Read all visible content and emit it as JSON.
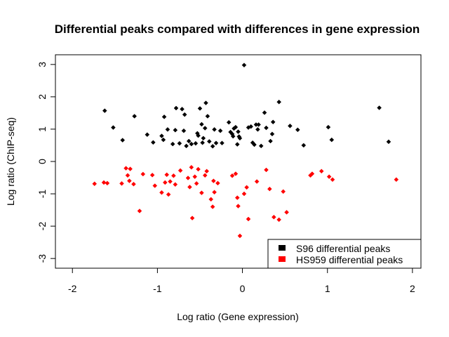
{
  "chart_data": {
    "type": "scatter",
    "title": "Differential peaks compared with differences in gene expression",
    "xlabel": "Log ratio (Gene expression)",
    "ylabel": "Log ratio (ChIP-seq)",
    "xlim": [
      -2.2,
      2.1
    ],
    "ylim": [
      -3.3,
      3.3
    ],
    "x_ticks": [
      "-2",
      "-1",
      "0",
      "1",
      "2"
    ],
    "x_tick_values": [
      -2,
      -1,
      0,
      1,
      2
    ],
    "y_ticks": [
      "-3",
      "-2",
      "-1",
      "0",
      "1",
      "2",
      "3"
    ],
    "y_tick_values": [
      -3,
      -2,
      -1,
      0,
      1,
      2,
      3
    ],
    "legend": {
      "position": "bottom-right"
    },
    "series": [
      {
        "name": "S96 differential peaks",
        "color": "#000000",
        "points": [
          [
            -1.62,
            1.57
          ],
          [
            -1.52,
            1.05
          ],
          [
            -1.41,
            0.66
          ],
          [
            -1.27,
            1.4
          ],
          [
            -1.12,
            0.83
          ],
          [
            -1.05,
            0.59
          ],
          [
            -0.95,
            0.79
          ],
          [
            -0.93,
            0.67
          ],
          [
            -0.92,
            1.38
          ],
          [
            -0.88,
            0.99
          ],
          [
            -0.82,
            0.54
          ],
          [
            -0.79,
            0.97
          ],
          [
            -0.78,
            1.65
          ],
          [
            -0.74,
            0.56
          ],
          [
            -0.71,
            1.62
          ],
          [
            -0.69,
            0.95
          ],
          [
            -0.68,
            1.45
          ],
          [
            -0.66,
            0.48
          ],
          [
            -0.63,
            0.63
          ],
          [
            -0.6,
            0.54
          ],
          [
            -0.55,
            0.56
          ],
          [
            -0.53,
            0.87
          ],
          [
            -0.52,
            0.8
          ],
          [
            -0.5,
            1.64
          ],
          [
            -0.48,
            1.15
          ],
          [
            -0.47,
            0.58
          ],
          [
            -0.46,
            0.72
          ],
          [
            -0.44,
            1.03
          ],
          [
            -0.43,
            1.81
          ],
          [
            -0.41,
            1.4
          ],
          [
            -0.39,
            0.62
          ],
          [
            -0.35,
            0.47
          ],
          [
            -0.33,
            0.99
          ],
          [
            -0.31,
            0.57
          ],
          [
            -0.26,
            0.95
          ],
          [
            -0.24,
            0.57
          ],
          [
            -0.16,
            1.21
          ],
          [
            -0.14,
            0.91
          ],
          [
            -0.12,
            0.85
          ],
          [
            -0.11,
            0.78
          ],
          [
            -0.1,
            1.02
          ],
          [
            -0.08,
            1.06
          ],
          [
            -0.06,
            0.53
          ],
          [
            -0.05,
            0.92
          ],
          [
            -0.04,
            0.77
          ],
          [
            -0.03,
            0.72
          ],
          [
            0.02,
            2.98
          ],
          [
            0.07,
            1.05
          ],
          [
            0.1,
            1.08
          ],
          [
            0.12,
            0.58
          ],
          [
            0.14,
            0.52
          ],
          [
            0.16,
            1.14
          ],
          [
            0.18,
            0.99
          ],
          [
            0.19,
            1.14
          ],
          [
            0.22,
            0.48
          ],
          [
            0.26,
            1.51
          ],
          [
            0.28,
            1.04
          ],
          [
            0.33,
            0.63
          ],
          [
            0.35,
            0.85
          ],
          [
            0.36,
            1.22
          ],
          [
            0.43,
            1.84
          ],
          [
            0.56,
            1.1
          ],
          [
            0.65,
            0.98
          ],
          [
            0.72,
            0.5
          ],
          [
            1.01,
            1.06
          ],
          [
            1.05,
            0.67
          ],
          [
            1.61,
            1.66
          ],
          [
            1.72,
            0.61
          ]
        ]
      },
      {
        "name": "HS959 differential peaks",
        "color": "#ff0000",
        "points": [
          [
            -1.74,
            -0.69
          ],
          [
            -1.63,
            -0.65
          ],
          [
            -1.59,
            -0.67
          ],
          [
            -1.42,
            -0.68
          ],
          [
            -1.37,
            -0.21
          ],
          [
            -1.35,
            -0.43
          ],
          [
            -1.33,
            -0.6
          ],
          [
            -1.32,
            -0.23
          ],
          [
            -1.28,
            -0.7
          ],
          [
            -1.21,
            -1.53
          ],
          [
            -1.17,
            -0.39
          ],
          [
            -1.06,
            -0.42
          ],
          [
            -1.03,
            -0.75
          ],
          [
            -0.95,
            -0.96
          ],
          [
            -0.91,
            -0.65
          ],
          [
            -0.89,
            -0.41
          ],
          [
            -0.87,
            -1.02
          ],
          [
            -0.85,
            -0.62
          ],
          [
            -0.81,
            -0.44
          ],
          [
            -0.79,
            -0.71
          ],
          [
            -0.73,
            -0.28
          ],
          [
            -0.64,
            -0.51
          ],
          [
            -0.62,
            -0.79
          ],
          [
            -0.6,
            -0.18
          ],
          [
            -0.59,
            -1.75
          ],
          [
            -0.56,
            -0.47
          ],
          [
            -0.54,
            -0.68
          ],
          [
            -0.52,
            -0.24
          ],
          [
            -0.48,
            -0.97
          ],
          [
            -0.44,
            -0.43
          ],
          [
            -0.42,
            -0.3
          ],
          [
            -0.37,
            -1.17
          ],
          [
            -0.35,
            -1.4
          ],
          [
            -0.34,
            -0.6
          ],
          [
            -0.33,
            -0.95
          ],
          [
            -0.29,
            -0.67
          ],
          [
            -0.12,
            -0.44
          ],
          [
            -0.08,
            -0.38
          ],
          [
            -0.06,
            -1.12
          ],
          [
            -0.05,
            -1.38
          ],
          [
            -0.03,
            -2.3
          ],
          [
            0.02,
            -1.0
          ],
          [
            0.05,
            -0.8
          ],
          [
            0.07,
            -1.78
          ],
          [
            0.17,
            -0.62
          ],
          [
            0.28,
            -0.26
          ],
          [
            0.32,
            -0.85
          ],
          [
            0.37,
            -1.72
          ],
          [
            0.43,
            -1.8
          ],
          [
            0.48,
            -0.93
          ],
          [
            0.52,
            -1.57
          ],
          [
            0.8,
            -0.43
          ],
          [
            0.82,
            -0.38
          ],
          [
            0.93,
            -0.3
          ],
          [
            1.02,
            -0.47
          ],
          [
            1.06,
            -0.56
          ],
          [
            1.81,
            -0.56
          ]
        ]
      }
    ]
  }
}
